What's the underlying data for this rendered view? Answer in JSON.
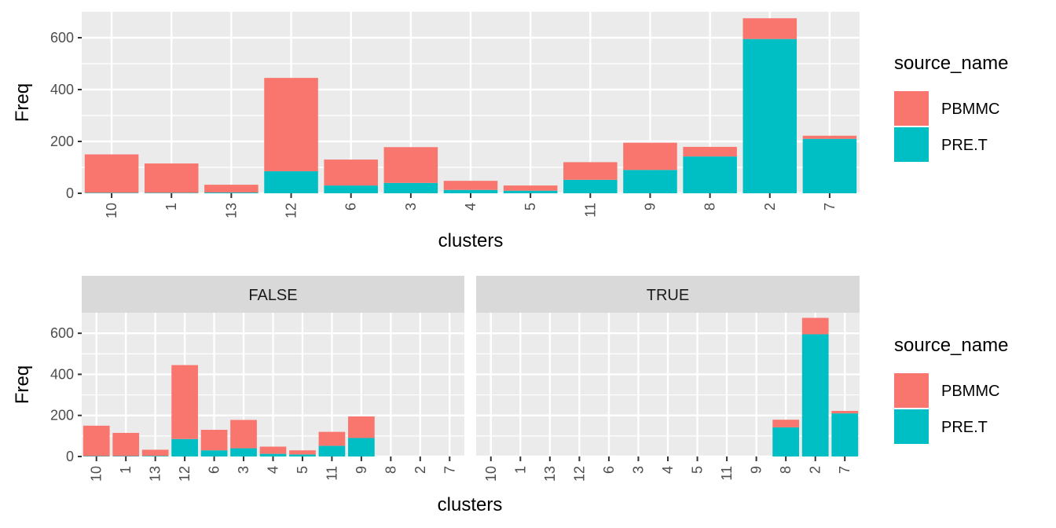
{
  "colors": {
    "PBMMC": "#F8766D",
    "PRE.T": "#00BFC4",
    "panel": "#EBEBEB",
    "strip": "#D9D9D9",
    "grid": "#FFFFFF"
  },
  "chart_data": [
    {
      "type": "bar",
      "stacked": true,
      "xlabel": "clusters",
      "ylabel": "Freq",
      "ylim": [
        0,
        700
      ],
      "yticks": [
        0,
        200,
        400,
        600
      ],
      "grid": true,
      "legend": {
        "title": "source_name",
        "position": "right",
        "entries": [
          "PBMMC",
          "PRE.T"
        ]
      },
      "categories": [
        "10",
        "1",
        "13",
        "12",
        "6",
        "3",
        "4",
        "5",
        "11",
        "9",
        "8",
        "2",
        "7"
      ],
      "series": [
        {
          "name": "PRE.T",
          "values": [
            2,
            2,
            3,
            85,
            30,
            40,
            13,
            10,
            52,
            90,
            142,
            595,
            210
          ]
        },
        {
          "name": "PBMMC",
          "values": [
            148,
            113,
            30,
            360,
            100,
            138,
            35,
            20,
            68,
            105,
            37,
            80,
            12
          ]
        }
      ]
    },
    {
      "type": "bar",
      "stacked": true,
      "xlabel": "clusters",
      "ylabel": "Freq",
      "ylim": [
        0,
        700
      ],
      "yticks": [
        0,
        200,
        400,
        600
      ],
      "grid": true,
      "legend": {
        "title": "source_name",
        "position": "right",
        "entries": [
          "PBMMC",
          "PRE.T"
        ]
      },
      "categories": [
        "10",
        "1",
        "13",
        "12",
        "6",
        "3",
        "4",
        "5",
        "11",
        "9",
        "8",
        "2",
        "7"
      ],
      "facets": [
        {
          "label": "FALSE",
          "series": [
            {
              "name": "PRE.T",
              "values": [
                2,
                2,
                3,
                85,
                30,
                40,
                13,
                10,
                52,
                90,
                0,
                0,
                0
              ]
            },
            {
              "name": "PBMMC",
              "values": [
                148,
                113,
                30,
                360,
                100,
                138,
                35,
                20,
                68,
                105,
                0,
                0,
                0
              ]
            }
          ]
        },
        {
          "label": "TRUE",
          "series": [
            {
              "name": "PRE.T",
              "values": [
                0,
                0,
                0,
                0,
                0,
                0,
                0,
                0,
                0,
                0,
                142,
                595,
                210
              ]
            },
            {
              "name": "PBMMC",
              "values": [
                0,
                0,
                0,
                0,
                0,
                0,
                0,
                0,
                0,
                0,
                37,
                80,
                12
              ]
            }
          ]
        }
      ]
    }
  ]
}
